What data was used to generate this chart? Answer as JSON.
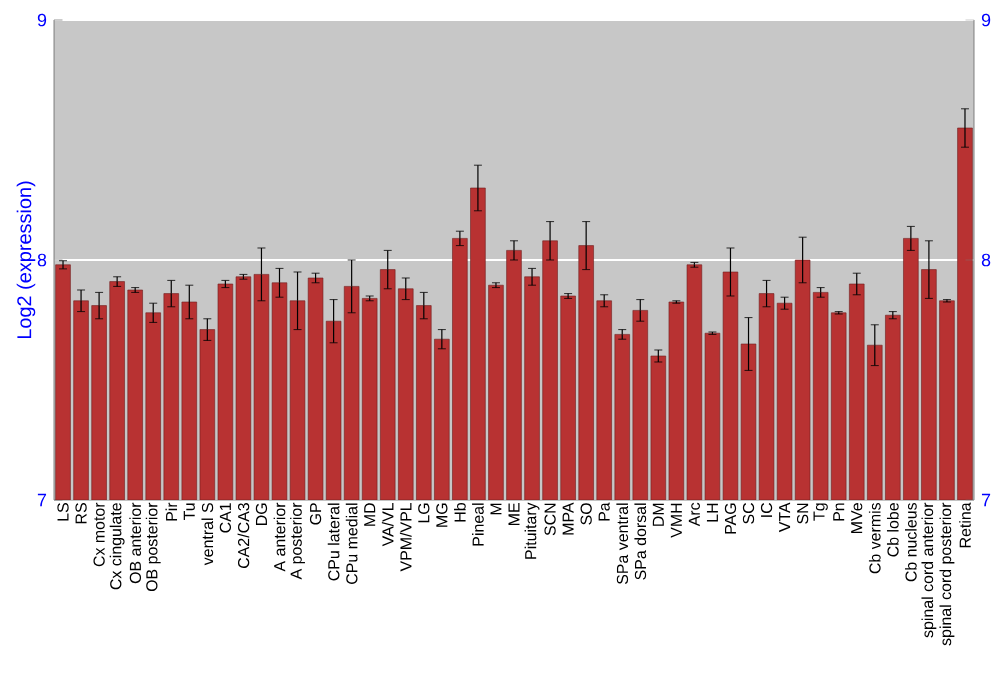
{
  "chart_data": {
    "type": "bar",
    "ylabel": "Log2 (expression)",
    "categories": [
      "LS",
      "RS",
      "Cx motor",
      "Cx cingulate",
      "OB anterior",
      "OB posterior",
      "Pir",
      "Tu",
      "ventral S",
      "CA1",
      "CA2/CA3",
      "DG",
      "A anterior",
      "A posterior",
      "GP",
      "CPu lateral",
      "CPu medial",
      "MD",
      "VA/VL",
      "VPM/VPL",
      "LG",
      "MG",
      "Hb",
      "Pineal",
      "M",
      "ME",
      "Pituitary",
      "SCN",
      "MPA",
      "SO",
      "Pa",
      "SPa ventral",
      "SPa dorsal",
      "DM",
      "VMH",
      "Arc",
      "LH",
      "PAG",
      "SC",
      "IC",
      "VTA",
      "SN",
      "Tg",
      "Pn",
      "MVe",
      "Cb vermis",
      "Cb lobe",
      "Cb nucleus",
      "spinal cord anterior",
      "spinal cord posterior",
      "Retina"
    ],
    "values": [
      7.98,
      7.83,
      7.81,
      7.91,
      7.875,
      7.78,
      7.86,
      7.825,
      7.71,
      7.9,
      7.93,
      7.94,
      7.905,
      7.83,
      7.925,
      7.745,
      7.89,
      7.84,
      7.96,
      7.88,
      7.81,
      7.67,
      8.09,
      8.3,
      7.895,
      8.04,
      7.93,
      8.08,
      7.85,
      8.06,
      7.83,
      7.69,
      7.79,
      7.6,
      7.825,
      7.98,
      7.695,
      7.95,
      7.65,
      7.86,
      7.82,
      8.0,
      7.865,
      7.78,
      7.9,
      7.645,
      7.77,
      8.09,
      7.96,
      7.83,
      8.55
    ],
    "errors": [
      0.017,
      0.045,
      0.055,
      0.02,
      0.01,
      0.04,
      0.055,
      0.07,
      0.045,
      0.015,
      0.01,
      0.11,
      0.06,
      0.12,
      0.02,
      0.09,
      0.11,
      0.01,
      0.08,
      0.045,
      0.055,
      0.04,
      0.03,
      0.095,
      0.01,
      0.04,
      0.035,
      0.08,
      0.01,
      0.1,
      0.025,
      0.02,
      0.045,
      0.025,
      0.005,
      0.01,
      0.005,
      0.1,
      0.11,
      0.055,
      0.025,
      0.095,
      0.02,
      0.005,
      0.045,
      0.085,
      0.015,
      0.05,
      0.12,
      0.005,
      0.08
    ],
    "color": "#b83232",
    "ylim": [
      7,
      9
    ],
    "yticks": [
      7,
      8,
      9
    ],
    "y2lim": [
      7,
      9
    ],
    "y2ticks": [
      7,
      8,
      9
    ],
    "grid": "y"
  }
}
